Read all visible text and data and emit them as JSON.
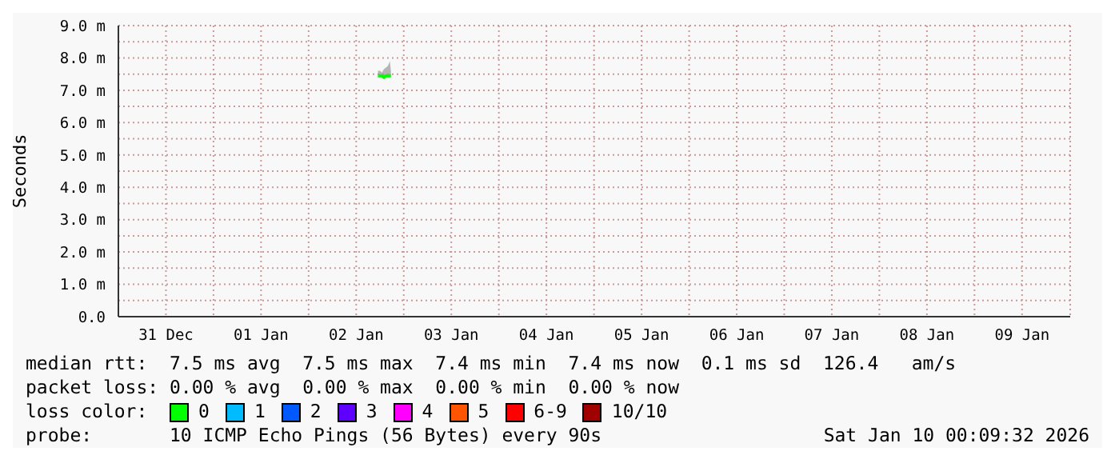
{
  "chart_data": {
    "type": "line",
    "ylabel": "Seconds",
    "legend_title": "loss color:",
    "legend": "bottom",
    "grid": true,
    "marker": "none",
    "line_style": "solid",
    "xlim": [
      "2025-12-31T00:00",
      "2026-01-10T00:09"
    ],
    "xticks": [
      {
        "value": "2025-12-31T00:00",
        "label": null
      },
      {
        "value": "2025-12-31T12:00",
        "label": "31 Dec"
      },
      {
        "value": "2026-01-01T00:00",
        "label": null
      },
      {
        "value": "2026-01-01T12:00",
        "label": "01 Jan"
      },
      {
        "value": "2026-01-02T00:00",
        "label": null
      },
      {
        "value": "2026-01-02T12:00",
        "label": "02 Jan"
      },
      {
        "value": "2026-01-03T00:00",
        "label": null
      },
      {
        "value": "2026-01-03T12:00",
        "label": "03 Jan"
      },
      {
        "value": "2026-01-04T00:00",
        "label": null
      },
      {
        "value": "2026-01-04T12:00",
        "label": "04 Jan"
      },
      {
        "value": "2026-01-05T00:00",
        "label": null
      },
      {
        "value": "2026-01-05T12:00",
        "label": "05 Jan"
      },
      {
        "value": "2026-01-06T00:00",
        "label": null
      },
      {
        "value": "2026-01-06T12:00",
        "label": "06 Jan"
      },
      {
        "value": "2026-01-07T00:00",
        "label": null
      },
      {
        "value": "2026-01-07T12:00",
        "label": "07 Jan"
      },
      {
        "value": "2026-01-08T00:00",
        "label": null
      },
      {
        "value": "2026-01-08T12:00",
        "label": "08 Jan"
      },
      {
        "value": "2026-01-09T00:00",
        "label": null
      },
      {
        "value": "2026-01-09T12:00",
        "label": "09 Jan"
      }
    ],
    "ylim": [
      0,
      9
    ],
    "yticks": [
      {
        "value": 0,
        "label": "0.0"
      },
      {
        "value": 0.5,
        "label": null
      },
      {
        "value": 1,
        "label": "1.0 m"
      },
      {
        "value": 1.5,
        "label": null
      },
      {
        "value": 2,
        "label": "2.0 m"
      },
      {
        "value": 2.5,
        "label": null
      },
      {
        "value": 3,
        "label": "3.0 m"
      },
      {
        "value": 3.5,
        "label": null
      },
      {
        "value": 4,
        "label": "4.0 m"
      },
      {
        "value": 4.5,
        "label": null
      },
      {
        "value": 5,
        "label": "5.0 m"
      },
      {
        "value": 5.5,
        "label": null
      },
      {
        "value": 6,
        "label": "6.0 m"
      },
      {
        "value": 6.5,
        "label": null
      },
      {
        "value": 7,
        "label": "7.0 m"
      },
      {
        "value": 7.5,
        "label": null
      },
      {
        "value": 8,
        "label": "8.0 m"
      },
      {
        "value": 8.5,
        "label": null
      },
      {
        "value": 9,
        "label": "9.0 m"
      }
    ],
    "series": [
      {
        "name": "0",
        "color": "#00ff00",
        "x": [
          "2026-01-02T17:30",
          "2026-01-02T18:00",
          "2026-01-02T18:30",
          "2026-01-02T19:00",
          "2026-01-02T19:30",
          "2026-01-02T20:00",
          "2026-01-02T20:30",
          "2026-01-02T20:45"
        ],
        "values": [
          7.45,
          7.45,
          7.45,
          7.4,
          7.45,
          7.45,
          7.45,
          7.45
        ],
        "lower": [
          7.4,
          7.4,
          7.4,
          7.35,
          7.4,
          7.4,
          7.4,
          7.4
        ],
        "upper": [
          7.6,
          7.6,
          7.55,
          7.65,
          7.7,
          7.75,
          7.9,
          7.6
        ]
      },
      {
        "name": "1",
        "color": "#00bbff"
      },
      {
        "name": "2",
        "color": "#0059ff"
      },
      {
        "name": "3",
        "color": "#5e00ff"
      },
      {
        "name": "4",
        "color": "#ff00ff"
      },
      {
        "name": "5",
        "color": "#ff5500"
      },
      {
        "name": "6-9",
        "color": "#ff0000"
      },
      {
        "name": "10/10",
        "color": "#a10000"
      }
    ],
    "annotations": [
      "median rtt:  7.5 ms avg  7.5 ms max  7.4 ms min  7.4 ms now  0.1 ms sd  126.4   am/s",
      "packet loss: 0.00 % avg  0.00 % max  0.00 % min  0.00 % now",
      "probe:       10 ICMP Echo Pings (56 Bytes) every 90s",
      "Sat Jan 10 00:09:32 2026"
    ]
  }
}
